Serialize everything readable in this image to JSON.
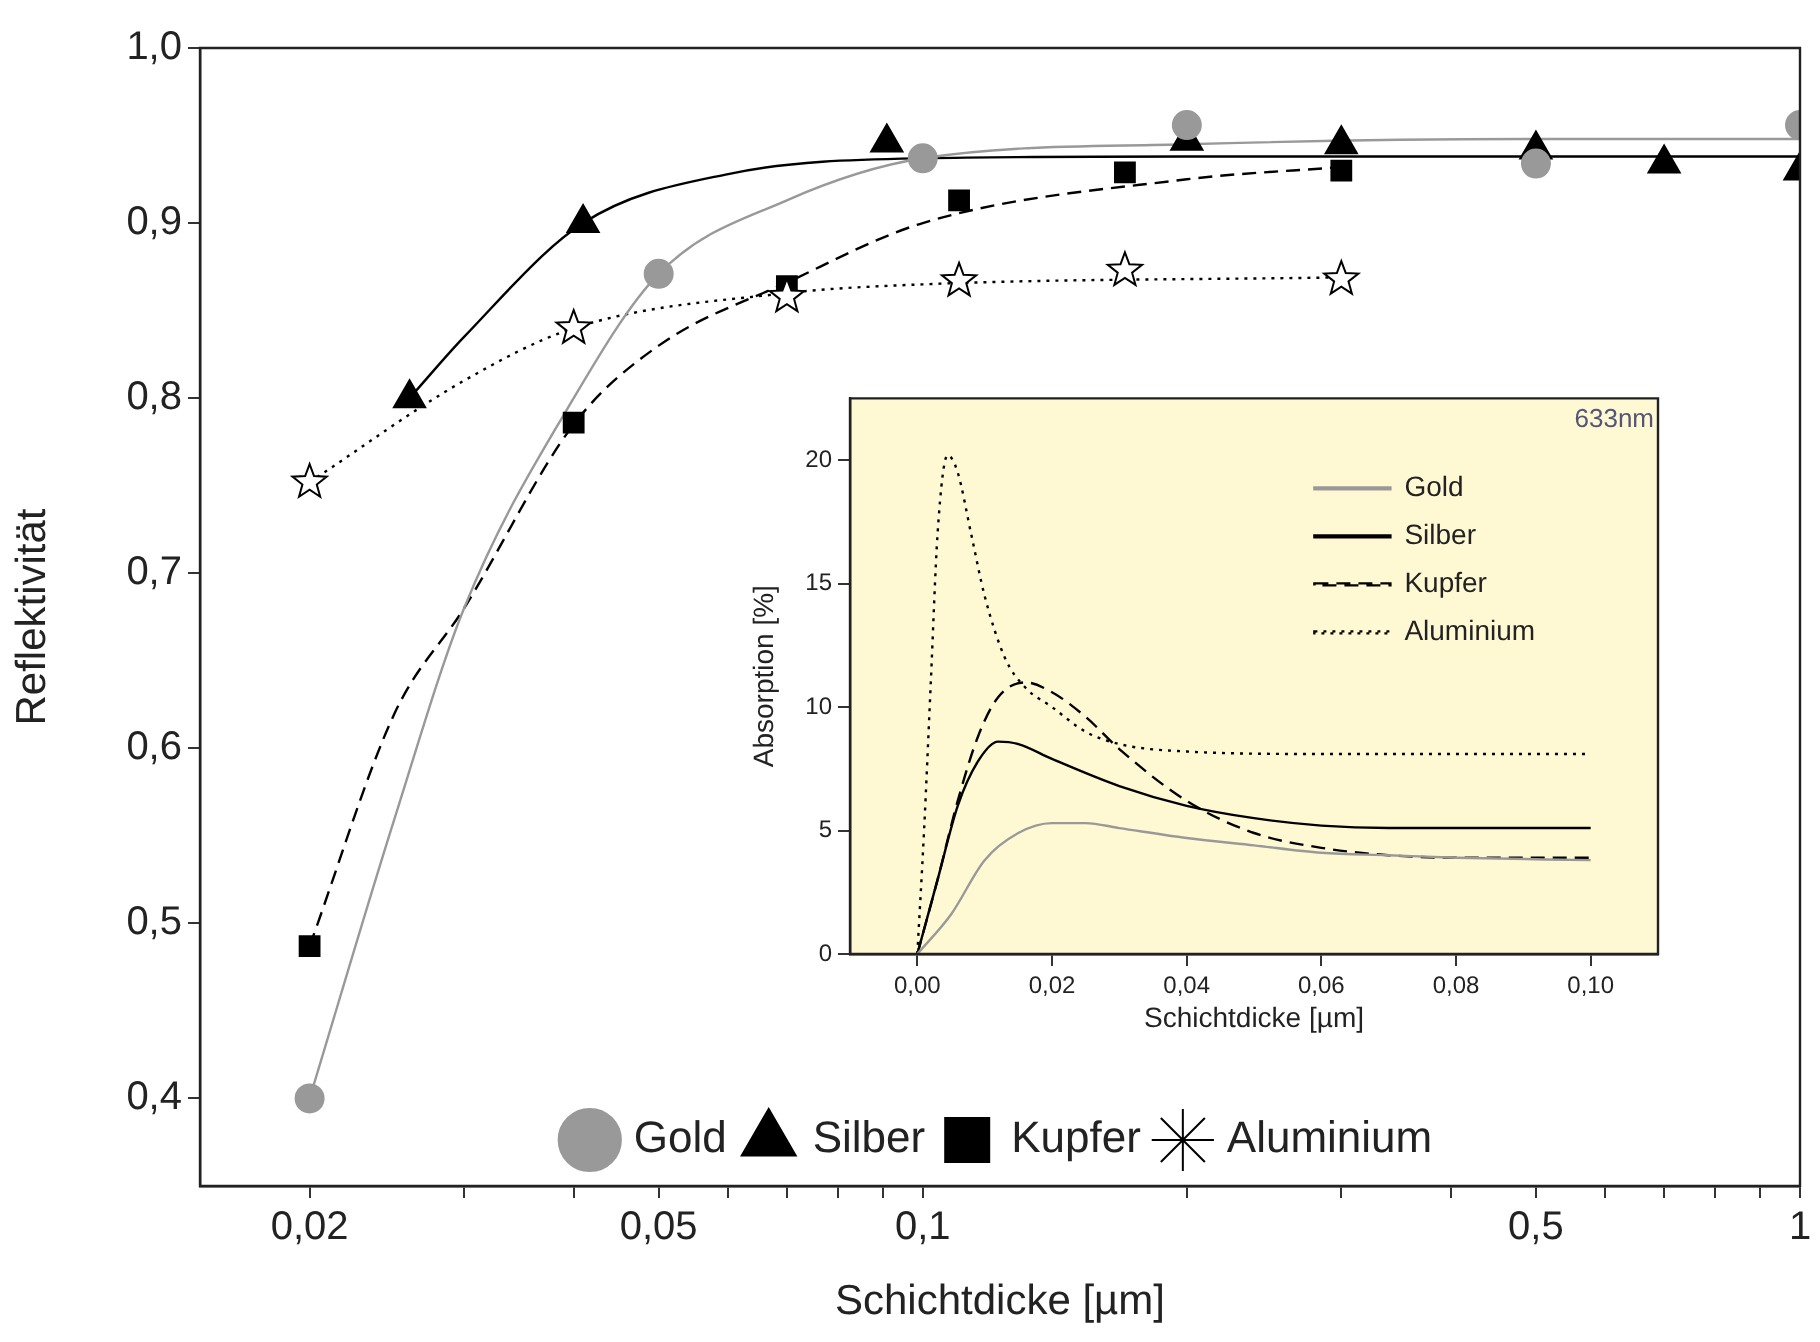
{
  "chart_data": [
    {
      "type": "scatter",
      "xlabel": "Schichtdicke [µm]",
      "ylabel": "Reflektivität",
      "log": "x",
      "grid": false,
      "legend": "bottom",
      "xlim": [
        0.015,
        1.0
      ],
      "ylim": [
        0.35,
        1.0
      ],
      "xticks": [
        {
          "value": 0.02,
          "label": "0,02"
        },
        {
          "value": 0.03,
          "label": null
        },
        {
          "value": 0.04,
          "label": null
        },
        {
          "value": 0.05,
          "label": "0,05"
        },
        {
          "value": 0.06,
          "label": null
        },
        {
          "value": 0.07,
          "label": null
        },
        {
          "value": 0.08,
          "label": null
        },
        {
          "value": 0.09,
          "label": null
        },
        {
          "value": 0.1,
          "label": "0,1"
        },
        {
          "value": 0.2,
          "label": null
        },
        {
          "value": 0.3,
          "label": null
        },
        {
          "value": 0.4,
          "label": null
        },
        {
          "value": 0.5,
          "label": "0,5"
        },
        {
          "value": 0.6,
          "label": null
        },
        {
          "value": 0.7,
          "label": null
        },
        {
          "value": 0.8,
          "label": null
        },
        {
          "value": 0.9,
          "label": null
        },
        {
          "value": 1.0,
          "label": "1"
        }
      ],
      "yticks": [
        {
          "value": 0.4,
          "label": "0,4"
        },
        {
          "value": 0.5,
          "label": "0,5"
        },
        {
          "value": 0.6,
          "label": "0,6"
        },
        {
          "value": 0.7,
          "label": "0,7"
        },
        {
          "value": 0.8,
          "label": "0,8"
        },
        {
          "value": 0.9,
          "label": "0,9"
        },
        {
          "value": 1.0,
          "label": "1,0"
        }
      ],
      "series": [
        {
          "type": "line",
          "color": "#999999",
          "marker": "none",
          "line_style": "solid",
          "x": [
            0.02,
            0.025,
            0.03,
            0.04,
            0.05,
            0.07,
            0.1,
            0.2,
            0.5,
            1.0
          ],
          "values": [
            0.4,
            0.56,
            0.68,
            0.8,
            0.871,
            0.913,
            0.937,
            0.945,
            0.948,
            0.948
          ]
        },
        {
          "type": "line",
          "color": "#000000",
          "marker": "none",
          "line_style": "solid",
          "x": [
            0.026,
            0.03,
            0.041,
            0.06,
            0.1,
            0.2,
            1.0
          ],
          "values": [
            0.8,
            0.835,
            0.9,
            0.928,
            0.937,
            0.938,
            0.938
          ]
        },
        {
          "type": "line",
          "color": "#000000",
          "marker": "none",
          "line_style": "dashed",
          "x": [
            0.02,
            0.025,
            0.03,
            0.04,
            0.05,
            0.07,
            0.1,
            0.2,
            0.3
          ],
          "values": [
            0.487,
            0.62,
            0.68,
            0.785,
            0.83,
            0.866,
            0.9,
            0.925,
            0.932
          ]
        },
        {
          "type": "line",
          "color": "#000000",
          "marker": "none",
          "line_style": "dotted",
          "x": [
            0.02,
            0.03,
            0.04,
            0.07,
            0.1,
            0.3
          ],
          "values": [
            0.752,
            0.81,
            0.84,
            0.86,
            0.865,
            0.869
          ]
        },
        {
          "name": "Gold",
          "color": "#999999",
          "marker": "circle",
          "x": [
            0.02,
            0.05,
            0.1,
            0.2,
            0.5,
            1.0
          ],
          "values": [
            0.4,
            0.871,
            0.937,
            0.956,
            0.934,
            0.956
          ]
        },
        {
          "name": "Silber",
          "color": "#000000",
          "marker": "triangle",
          "x": [
            0.026,
            0.041,
            0.091,
            0.2,
            0.3,
            0.5,
            0.7,
            1.0
          ],
          "values": [
            0.8,
            0.9,
            0.946,
            0.947,
            0.945,
            0.942,
            0.934,
            0.93
          ]
        },
        {
          "name": "Kupfer",
          "color": "#000000",
          "marker": "square",
          "x": [
            0.02,
            0.04,
            0.07,
            0.11,
            0.17,
            0.3
          ],
          "values": [
            0.487,
            0.786,
            0.864,
            0.913,
            0.929,
            0.93
          ]
        },
        {
          "name": "Aluminium",
          "color": "#000000",
          "marker": "star",
          "x": [
            0.02,
            0.04,
            0.07,
            0.11,
            0.17,
            0.3
          ],
          "values": [
            0.752,
            0.84,
            0.858,
            0.867,
            0.873,
            0.868
          ]
        }
      ]
    },
    {
      "type": "line",
      "xlabel": "Schichtdicke [µm]",
      "ylabel": "Absorption [%]",
      "grid": false,
      "legend": "top right",
      "annotations": [
        "633nm"
      ],
      "xlim": [
        -0.01,
        0.11
      ],
      "ylim": [
        0,
        22.5
      ],
      "xticks": [
        {
          "value": 0,
          "label": "0,00"
        },
        {
          "value": 0.02,
          "label": "0,02"
        },
        {
          "value": 0.04,
          "label": "0,04"
        },
        {
          "value": 0.06,
          "label": "0,06"
        },
        {
          "value": 0.08,
          "label": "0,08"
        },
        {
          "value": 0.1,
          "label": "0,10"
        }
      ],
      "yticks": [
        0,
        5,
        10,
        15,
        20
      ],
      "series": [
        {
          "name": "Gold",
          "color": "#999999",
          "line_style": "solid",
          "x": [
            0,
            0.005,
            0.01,
            0.015,
            0.02,
            0.025,
            0.03,
            0.04,
            0.05,
            0.06,
            0.07,
            0.08,
            0.1
          ],
          "values": [
            0,
            1.6,
            3.8,
            4.9,
            5.3,
            5.3,
            5.1,
            4.7,
            4.4,
            4.1,
            4.0,
            3.9,
            3.8
          ]
        },
        {
          "name": "Silber",
          "color": "#000000",
          "line_style": "solid",
          "x": [
            0,
            0.003,
            0.006,
            0.009,
            0.012,
            0.015,
            0.02,
            0.03,
            0.04,
            0.05,
            0.06,
            0.07,
            0.1
          ],
          "values": [
            0,
            3,
            6,
            7.8,
            8.6,
            8.5,
            7.9,
            6.8,
            6.0,
            5.5,
            5.2,
            5.1,
            5.1
          ]
        },
        {
          "name": "Kupfer",
          "color": "#000000",
          "line_style": "dashed",
          "x": [
            0,
            0.003,
            0.006,
            0.009,
            0.012,
            0.016,
            0.02,
            0.025,
            0.03,
            0.04,
            0.05,
            0.06,
            0.07,
            0.08,
            0.1
          ],
          "values": [
            0,
            3,
            6.2,
            8.8,
            10.4,
            11.0,
            10.6,
            9.6,
            8.3,
            6.2,
            4.9,
            4.3,
            4.0,
            3.9,
            3.9
          ]
        },
        {
          "name": "Aluminium",
          "color": "#000000",
          "line_style": "dotted",
          "x": [
            0,
            0.001,
            0.002,
            0.003,
            0.0045,
            0.006,
            0.008,
            0.01,
            0.013,
            0.016,
            0.02,
            0.025,
            0.03,
            0.04,
            0.06,
            0.1
          ],
          "values": [
            0,
            5,
            11,
            17,
            20.2,
            19.5,
            17,
            14.5,
            12,
            10.8,
            10.0,
            9.0,
            8.5,
            8.2,
            8.1,
            8.1
          ]
        }
      ]
    }
  ]
}
